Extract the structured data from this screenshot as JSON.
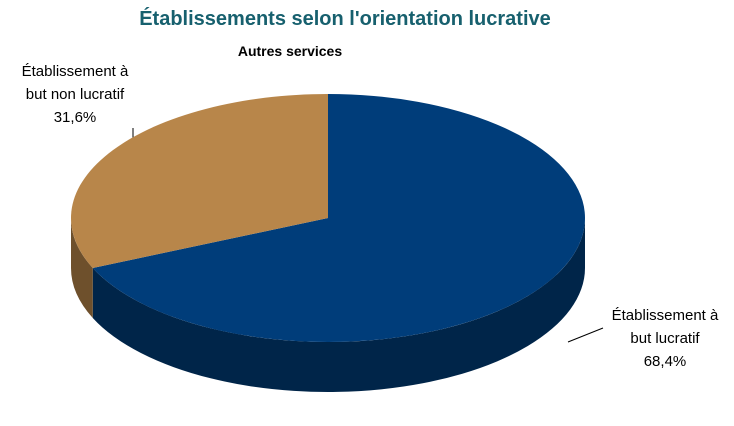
{
  "chart_data": {
    "type": "pie",
    "title": "Établissements selon l'orientation lucrative",
    "subtitle": "Autres services",
    "categories": [
      "Établissement à but lucratif",
      "Établissement à but non lucratif"
    ],
    "values": [
      68.4,
      31.6
    ],
    "value_labels": [
      "68,4%",
      "31,6%"
    ],
    "colors": [
      "#003d7a",
      "#b8864a"
    ]
  }
}
